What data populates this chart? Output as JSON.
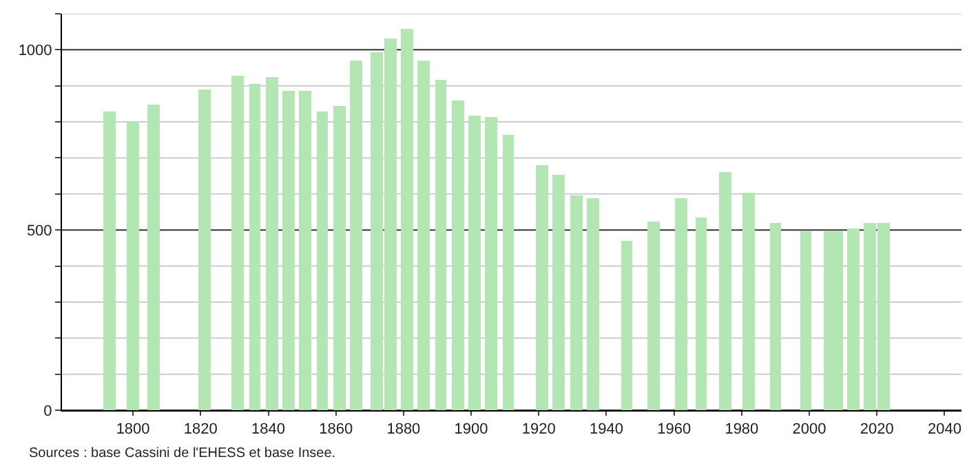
{
  "chart_data": {
    "type": "bar",
    "color": "#b3e6b3",
    "x": [
      1793,
      1800,
      1806,
      1821,
      1831,
      1836,
      1841,
      1846,
      1851,
      1856,
      1861,
      1866,
      1872,
      1876,
      1881,
      1886,
      1891,
      1896,
      1901,
      1906,
      1911,
      1921,
      1926,
      1931,
      1936,
      1946,
      1954,
      1962,
      1968,
      1975,
      1982,
      1990,
      1999,
      2006,
      2008,
      2013,
      2018,
      2022
    ],
    "values": [
      830,
      803,
      848,
      891,
      930,
      907,
      924,
      887,
      887,
      830,
      845,
      971,
      994,
      1032,
      1057,
      971,
      916,
      860,
      819,
      813,
      763,
      678,
      655,
      594,
      590,
      468,
      522,
      590,
      533,
      662,
      605,
      518,
      497,
      497,
      497,
      503,
      519,
      520
    ],
    "xlim": [
      1779,
      2045
    ],
    "xticks": [
      1800,
      1820,
      1840,
      1860,
      1880,
      1900,
      1920,
      1940,
      1960,
      1980,
      2000,
      2020,
      2040
    ],
    "ylim": [
      0,
      1100
    ],
    "yticks": [
      0,
      {
        "value": 100,
        "label": null
      },
      {
        "value": 200,
        "label": null
      },
      {
        "value": 300,
        "label": null
      },
      {
        "value": 400,
        "label": null
      },
      500,
      {
        "value": 600,
        "label": null
      },
      {
        "value": 700,
        "label": null
      },
      {
        "value": 800,
        "label": null
      },
      {
        "value": 900,
        "label": null
      },
      1000,
      {
        "value": 1100,
        "label": null
      }
    ],
    "grid": "y",
    "annotations": [
      "Sources : base Cassini de l'EHESS et base Insee."
    ]
  }
}
